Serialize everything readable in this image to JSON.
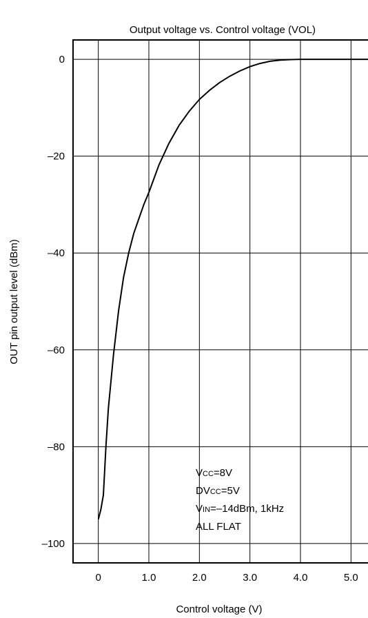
{
  "chart_data": {
    "type": "line",
    "title": "Output voltage vs. Control voltage (VOL)",
    "xlabel": "Control voltage (V)",
    "ylabel": "OUT pin output level (dBm)",
    "xlim": [
      -0.5,
      5.5
    ],
    "ylim": [
      -104,
      4
    ],
    "x_ticks": [
      0,
      1,
      2,
      3,
      4,
      5
    ],
    "x_tick_labels": [
      "0",
      "1.0",
      "2.0",
      "3.0",
      "4.0",
      "5.0"
    ],
    "y_ticks": [
      0,
      -20,
      -40,
      -60,
      -80,
      -100
    ],
    "y_tick_labels": [
      "0",
      "–20",
      "–40",
      "–60",
      "–80",
      "–100"
    ],
    "grid": true,
    "series": [
      {
        "x": [
          0,
          0.05,
          0.1,
          0.15,
          0.2,
          0.3,
          0.4,
          0.5,
          0.6,
          0.7,
          0.8,
          0.9,
          1.0,
          1.2,
          1.4,
          1.6,
          1.8,
          2.0,
          2.2,
          2.4,
          2.6,
          2.8,
          3.0,
          3.2,
          3.4,
          3.6,
          3.8,
          4.0,
          4.2,
          4.3,
          4.5,
          5.0,
          5.5
        ],
        "y": [
          -95,
          -93,
          -90,
          -80,
          -72,
          -61,
          -52,
          -45,
          -40,
          -36,
          -33,
          -30,
          -27.5,
          -21.8,
          -17.3,
          -13.6,
          -10.7,
          -8.3,
          -6.4,
          -4.8,
          -3.5,
          -2.4,
          -1.5,
          -0.85,
          -0.4,
          -0.15,
          -0.05,
          0,
          0,
          0,
          0,
          0,
          0
        ],
        "color": "#000000"
      }
    ],
    "annotations": [
      {
        "main": "V",
        "sub": "CC",
        "rest": "=8V"
      },
      {
        "main": "DV",
        "sub": "CC",
        "rest": "=5V"
      },
      {
        "main": "V",
        "sub": "IN",
        "rest": "=–14dBm, 1kHz"
      },
      {
        "main": "ALL FLAT",
        "sub": "",
        "rest": ""
      }
    ]
  }
}
